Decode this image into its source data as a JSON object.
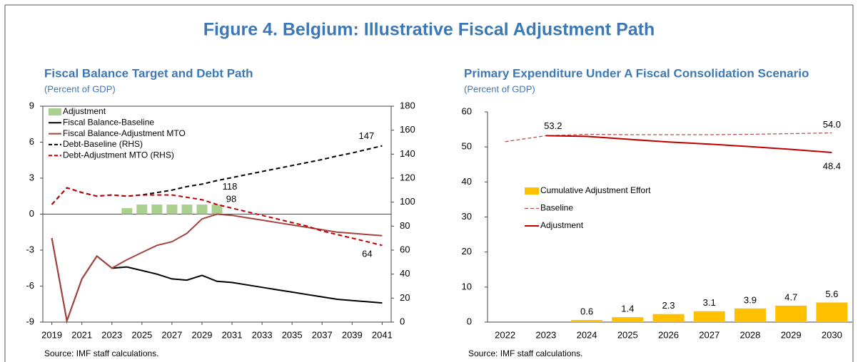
{
  "title": "Figure 4. Belgium: Illustrative Fiscal Adjustment Path",
  "chart_data": [
    {
      "type": "combo",
      "title": "Fiscal Balance Target and Debt Path",
      "subtitle": "(Percent of GDP)",
      "source": "Source: IMF staff calculations.",
      "x": [
        2019,
        2020,
        2021,
        2022,
        2023,
        2024,
        2025,
        2026,
        2027,
        2028,
        2029,
        2030,
        2031,
        2032,
        2033,
        2034,
        2035,
        2036,
        2037,
        2038,
        2039,
        2040,
        2041
      ],
      "xlim": [
        2018.4,
        2041.6
      ],
      "xticks": [
        2019,
        2021,
        2023,
        2025,
        2027,
        2029,
        2031,
        2033,
        2035,
        2037,
        2039,
        2041
      ],
      "ylim": [
        -9,
        9
      ],
      "yticks": [
        -9,
        -6,
        -3,
        0,
        3,
        6,
        9
      ],
      "y2lim": [
        0,
        180
      ],
      "y2ticks": [
        0,
        20,
        40,
        60,
        80,
        100,
        120,
        140,
        160,
        180
      ],
      "series": [
        {
          "name": "Adjustment",
          "type": "bar",
          "color": "#a9d08e",
          "values": [
            null,
            null,
            null,
            null,
            null,
            0.5,
            0.8,
            0.8,
            0.8,
            0.8,
            0.8,
            0.8,
            null,
            null,
            null,
            null,
            null,
            null,
            null,
            null,
            null,
            null,
            null
          ]
        },
        {
          "name": "Fiscal Balance-Baseline",
          "type": "line",
          "color": "#000000",
          "values": [
            -2.0,
            -8.9,
            -5.4,
            -3.5,
            -4.5,
            -4.4,
            -4.7,
            -5.0,
            -5.4,
            -5.5,
            -5.1,
            -5.6,
            -5.7,
            -5.9,
            -6.1,
            -6.3,
            -6.5,
            -6.7,
            -6.9,
            -7.1,
            -7.2,
            -7.3,
            -7.4
          ]
        },
        {
          "name": "Fiscal Balance-Adjustment MTO",
          "type": "line",
          "color": "#a5443f",
          "values": [
            -2.0,
            -8.9,
            -5.4,
            -3.5,
            -4.5,
            -3.8,
            -3.2,
            -2.6,
            -2.3,
            -1.6,
            -0.4,
            0.0,
            -0.1,
            -0.3,
            -0.5,
            -0.7,
            -0.9,
            -1.1,
            -1.3,
            -1.5,
            -1.6,
            -1.7,
            -1.8
          ]
        },
        {
          "name": "Debt-Baseline (RHS)",
          "type": "line",
          "color": "#000000",
          "dash": true,
          "axis": "y2",
          "values": [
            98,
            112,
            108,
            105,
            106,
            105,
            106,
            108,
            110,
            113,
            115,
            118,
            120.5,
            123,
            125.5,
            128,
            130.5,
            133,
            135.5,
            138.5,
            141,
            144,
            147
          ],
          "value_labels": [
            null,
            null,
            null,
            null,
            null,
            null,
            null,
            null,
            null,
            null,
            null,
            "118",
            null,
            null,
            null,
            null,
            null,
            null,
            null,
            null,
            null,
            null,
            "147"
          ]
        },
        {
          "name": "Debt-Adjustment MTO (RHS)",
          "type": "line",
          "color": "#c00000",
          "dash": true,
          "axis": "y2",
          "values": [
            98,
            112,
            108,
            105,
            106,
            105,
            106,
            106,
            106,
            104,
            102,
            98,
            95,
            92,
            89,
            86,
            83,
            80,
            76,
            73,
            70,
            67,
            64
          ],
          "value_labels": [
            null,
            null,
            null,
            null,
            null,
            null,
            null,
            null,
            null,
            null,
            null,
            "98",
            null,
            null,
            null,
            null,
            null,
            null,
            null,
            null,
            null,
            null,
            "64"
          ]
        }
      ]
    },
    {
      "type": "combo",
      "title": "Primary Expenditure Under A Fiscal Consolidation Scenario",
      "subtitle": "(Percent of GDP)",
      "source": "Source: IMF staff calculations.",
      "categories": [
        "2022",
        "2023",
        "2024",
        "2025",
        "2026",
        "2027",
        "2028",
        "2029",
        "2030"
      ],
      "ylim": [
        0,
        60
      ],
      "yticks": [
        0,
        10,
        20,
        30,
        40,
        50,
        60
      ],
      "series": [
        {
          "name": "Cumulative Adjustment Effort",
          "type": "bar",
          "color": "#ffc000",
          "values": [
            null,
            null,
            0.6,
            1.4,
            2.3,
            3.1,
            3.9,
            4.7,
            5.6
          ],
          "value_labels": [
            null,
            null,
            "0.6",
            "1.4",
            "2.3",
            "3.1",
            "3.9",
            "4.7",
            "5.6"
          ]
        },
        {
          "name": "Baseline",
          "type": "line",
          "color": "#c0504d",
          "dash": true,
          "thin": true,
          "values": [
            51.5,
            53.2,
            53.6,
            53.5,
            53.5,
            53.5,
            53.6,
            53.8,
            54.0
          ],
          "value_labels": [
            null,
            "53.2",
            null,
            null,
            null,
            null,
            null,
            null,
            "54.0"
          ]
        },
        {
          "name": "Adjustment",
          "type": "line",
          "color": "#c00000",
          "values": [
            null,
            53.2,
            53.0,
            52.2,
            51.4,
            50.8,
            50.1,
            49.3,
            48.4
          ],
          "value_labels": [
            null,
            null,
            null,
            null,
            null,
            null,
            null,
            null,
            "48.4"
          ]
        }
      ]
    }
  ]
}
